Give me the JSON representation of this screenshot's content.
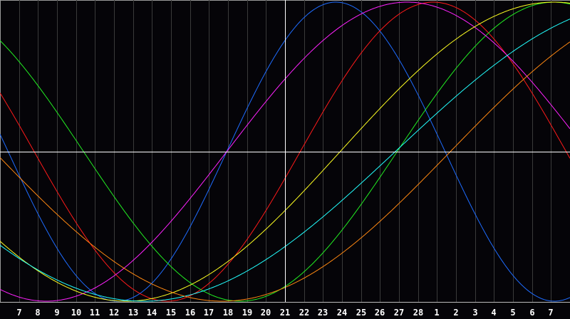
{
  "chart_data": {
    "type": "line",
    "title": "",
    "xlabel": "",
    "ylabel": "",
    "x_tick_labels": [
      "7",
      "8",
      "9",
      "10",
      "11",
      "12",
      "13",
      "14",
      "15",
      "16",
      "17",
      "18",
      "19",
      "20",
      "21",
      "22",
      "23",
      "24",
      "25",
      "26",
      "27",
      "28",
      "1",
      "2",
      "3",
      "4",
      "5",
      "6",
      "7"
    ],
    "current_day_tick": "21",
    "ylim": [
      -1,
      1
    ],
    "grid": true,
    "legend": "none",
    "background_color": "#050408",
    "grid_color": "#3a3a3a",
    "axis_color": "#ffffff",
    "series": [
      {
        "color": "#1e6cff",
        "period_days": 23,
        "upcrossing_day": 11.93
      },
      {
        "color": "#ff1a1a",
        "period_days": 28,
        "upcrossing_day": 15.8
      },
      {
        "color": "#22ee22",
        "period_days": 33,
        "upcrossing_day": 20.9
      },
      {
        "color": "#ff22ff",
        "period_days": 38,
        "upcrossing_day": 11.93
      },
      {
        "color": "#ffff22",
        "period_days": 45,
        "upcrossing_day": 17.9
      },
      {
        "color": "#22ffff",
        "period_days": 53,
        "upcrossing_day": 20.8
      },
      {
        "color": "#ff8811",
        "period_days": 48,
        "upcrossing_day": 23.7
      }
    ]
  }
}
